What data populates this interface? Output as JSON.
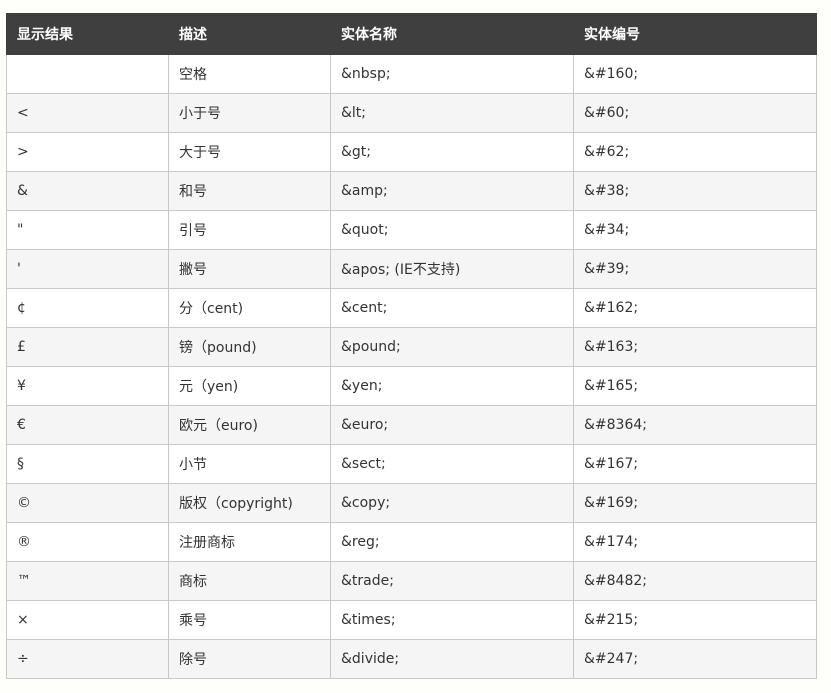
{
  "table": {
    "headers": [
      "显示结果",
      "描述",
      "实体名称",
      "实体编号"
    ],
    "rows": [
      [
        "",
        "空格",
        "&nbsp;",
        "&#160;"
      ],
      [
        "<",
        "小于号",
        "&lt;",
        "&#60;"
      ],
      [
        ">",
        "大于号",
        "&gt;",
        "&#62;"
      ],
      [
        "&",
        "和号",
        "&amp;",
        "&#38;"
      ],
      [
        "\"",
        "引号",
        "&quot;",
        "&#34;"
      ],
      [
        "'",
        "撇号",
        "&apos; (IE不支持)",
        "&#39;"
      ],
      [
        "¢",
        "分（cent)",
        "&cent;",
        "&#162;"
      ],
      [
        "£",
        "镑（pound)",
        "&pound;",
        "&#163;"
      ],
      [
        "¥",
        "元（yen)",
        "&yen;",
        "&#165;"
      ],
      [
        "€",
        "欧元（euro)",
        "&euro;",
        "&#8364;"
      ],
      [
        "§",
        "小节",
        "&sect;",
        "&#167;"
      ],
      [
        "©",
        "版权（copyright)",
        "&copy;",
        "&#169;"
      ],
      [
        "®",
        "注册商标",
        "&reg;",
        "&#174;"
      ],
      [
        "™",
        "商标",
        "&trade;",
        "&#8482;"
      ],
      [
        "×",
        "乘号",
        "&times;",
        "&#215;"
      ],
      [
        "÷",
        "除号",
        "&divide;",
        "&#247;"
      ]
    ]
  }
}
